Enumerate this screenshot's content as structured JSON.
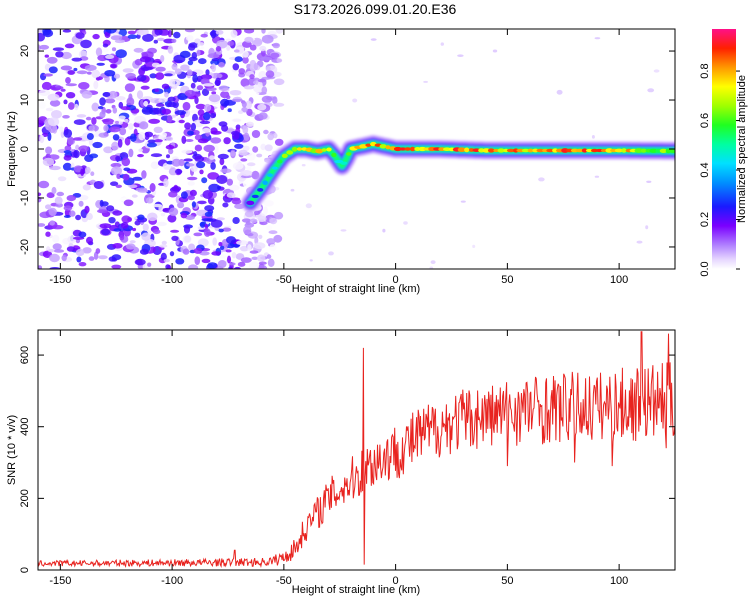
{
  "title": "S173.2026.099.01.20.E36",
  "chart_data": [
    {
      "type": "heatmap",
      "name": "spectrogram",
      "xlabel": "Height of straight line (km)",
      "ylabel": "Frequency (Hz)",
      "xlim": [
        -160,
        125
      ],
      "ylim": [
        -24.5,
        24.5
      ],
      "x_ticks": [
        -150,
        -100,
        -50,
        0,
        50,
        100
      ],
      "y_ticks": [
        -20,
        -10,
        0,
        10,
        20
      ],
      "colorbar": {
        "label": "Normalized spectral amplitude",
        "range": [
          0,
          0.97
        ],
        "ticks": [
          "0.0",
          "0.2",
          "0.4",
          "0.6",
          "0.8"
        ],
        "tick_values": [
          0,
          0.2,
          0.4,
          0.6,
          0.8
        ]
      },
      "noise_region_x": [
        -160,
        -60
      ],
      "ridge": {
        "x": [
          -65,
          -60,
          -55,
          -50,
          -45,
          -40,
          -35,
          -30,
          -27,
          -24,
          -22,
          -20,
          -15,
          -10,
          -5,
          0,
          10,
          20,
          40,
          60,
          80,
          100,
          125
        ],
        "freq": [
          -11,
          -8,
          -4.5,
          -1.5,
          0,
          0,
          -0.5,
          0,
          -1.5,
          -3.5,
          -2,
          0,
          0.5,
          1,
          0.5,
          0,
          0,
          0,
          -0.3,
          -0.3,
          -0.3,
          -0.3,
          -0.4
        ],
        "peak_amplitude": [
          0.25,
          0.35,
          0.45,
          0.7,
          0.8,
          0.92,
          0.85,
          0.9,
          0.55,
          0.4,
          0.55,
          0.8,
          0.85,
          0.9,
          0.85,
          0.9,
          0.9,
          0.95,
          0.9,
          0.9,
          0.92,
          0.95,
          0.6
        ]
      },
      "colormap": "rainbow"
    },
    {
      "type": "line",
      "name": "snr",
      "xlabel": "Height of straight line (km)",
      "ylabel": "SNR (10 * v/v)",
      "xlim": [
        -160,
        125
      ],
      "ylim": [
        0,
        670
      ],
      "x_ticks": [
        -150,
        -100,
        -50,
        0,
        50,
        100
      ],
      "y_ticks": [
        0,
        200,
        400,
        600
      ],
      "color": "#e8231f",
      "envelope": {
        "x": [
          -160,
          -100,
          -60,
          -55,
          -50,
          -45,
          -40,
          -30,
          -20,
          -15,
          -10,
          0,
          10,
          20,
          30,
          40,
          50,
          60,
          70,
          80,
          90,
          100,
          110,
          120,
          125
        ],
        "y": [
          18,
          20,
          22,
          25,
          35,
          60,
          120,
          200,
          250,
          275,
          300,
          330,
          370,
          400,
          420,
          430,
          440,
          450,
          450,
          455,
          455,
          460,
          465,
          470,
          470
        ],
        "amp": [
          8,
          10,
          12,
          15,
          20,
          30,
          40,
          55,
          65,
          70,
          75,
          80,
          85,
          85,
          90,
          90,
          95,
          100,
          100,
          100,
          100,
          105,
          110,
          110,
          110
        ]
      },
      "spikes": [
        {
          "x": -14.5,
          "y": 620
        },
        {
          "x": -14.0,
          "y": 15
        },
        {
          "x": 110,
          "y": 665
        },
        {
          "x": 122,
          "y": 660
        },
        {
          "x": 50,
          "y": 290
        },
        {
          "x": 80,
          "y": 300
        },
        {
          "x": 121,
          "y": 340
        },
        {
          "x": 97,
          "y": 290
        },
        {
          "x": -72,
          "y": 55
        }
      ]
    }
  ]
}
